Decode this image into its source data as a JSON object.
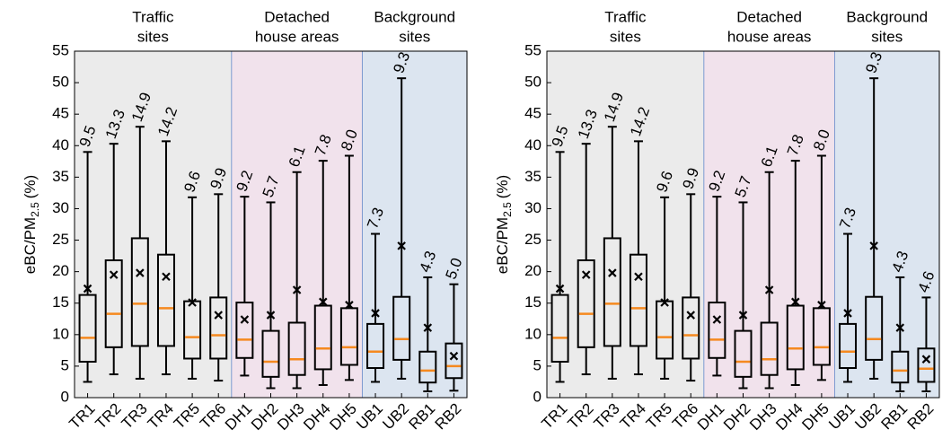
{
  "chart_data": [
    {
      "type": "box",
      "ylabel_parts": [
        "eBC/PM",
        "2.5",
        "(%)"
      ],
      "categories": [
        "TR1",
        "TR2",
        "TR3",
        "TR4",
        "TR5",
        "TR6",
        "DH1",
        "DH2",
        "DH3",
        "DH4",
        "DH5",
        "UB1",
        "UB2",
        "RB1",
        "RB2"
      ],
      "groups": [
        {
          "label_lines": [
            "Traffic",
            "sites"
          ],
          "span": 6,
          "color": "#ebebeb",
          "edge": "#9a8fc8"
        },
        {
          "label_lines": [
            "Detached",
            "house areas"
          ],
          "span": 5,
          "color": "#f1e2ec",
          "edge": "#7c9ad0"
        },
        {
          "label_lines": [
            "Background",
            "sites"
          ],
          "span": 4,
          "color": "#dce5f0",
          "edge": "#7c9ad0"
        }
      ],
      "whisker_low": [
        2.5,
        3.7,
        3,
        3.7,
        3,
        2.7,
        3.5,
        1.5,
        1.5,
        2,
        2.8,
        2.5,
        3,
        1,
        1.1
      ],
      "q1": [
        5.7,
        8,
        8.2,
        8.2,
        6.2,
        6.2,
        6.3,
        3.3,
        3.6,
        4.5,
        5.2,
        4.7,
        6,
        2.4,
        3.1
      ],
      "median": [
        9.5,
        13.3,
        14.9,
        14.2,
        9.6,
        9.9,
        9.2,
        5.7,
        6.1,
        7.8,
        8.0,
        7.3,
        9.3,
        4.3,
        5.0
      ],
      "value_labels": [
        "9.5",
        "13.3",
        "14.9",
        "14.2",
        "9.6",
        "9.9",
        "9.2",
        "5.7",
        "6.1",
        "7.8",
        "8.0",
        "7.3",
        "9.3",
        "4.3",
        "5.0"
      ],
      "q3": [
        16.3,
        21.8,
        25.3,
        22.7,
        15.3,
        15.9,
        15.1,
        10.6,
        11.9,
        14.6,
        14.2,
        11.7,
        16,
        7.3,
        8.6
      ],
      "whisker_high": [
        39,
        40.3,
        43,
        40.7,
        31.8,
        32.3,
        31.9,
        31,
        35.8,
        37.6,
        38.4,
        26,
        50.7,
        19.1,
        18
      ],
      "mean": [
        17.3,
        19.5,
        19.8,
        19.2,
        15.1,
        13.1,
        12.4,
        13.1,
        17.1,
        15.2,
        14.7,
        13.4,
        24.1,
        11.1,
        6.6
      ],
      "median_color": "#f5891f",
      "box_color": "#000000",
      "ylim": [
        0,
        55
      ],
      "yticks": [
        0,
        5,
        10,
        15,
        20,
        25,
        30,
        35,
        40,
        45,
        50,
        55
      ]
    },
    {
      "type": "box",
      "ylabel_parts": [
        "eBC/PM",
        "2.5",
        "(%)"
      ],
      "categories": [
        "TR1",
        "TR2",
        "TR3",
        "TR4",
        "TR5",
        "TR6",
        "DH1",
        "DH2",
        "DH3",
        "DH4",
        "DH5",
        "UB1",
        "UB2",
        "RB1",
        "RB2"
      ],
      "groups": [
        {
          "label_lines": [
            "Traffic",
            "sites"
          ],
          "span": 6,
          "color": "#ebebeb",
          "edge": "#9a8fc8"
        },
        {
          "label_lines": [
            "Detached",
            "house areas"
          ],
          "span": 5,
          "color": "#f1e2ec",
          "edge": "#7c9ad0"
        },
        {
          "label_lines": [
            "Background",
            "sites"
          ],
          "span": 4,
          "color": "#dce5f0",
          "edge": "#7c9ad0"
        }
      ],
      "whisker_low": [
        2.5,
        3.7,
        3,
        3.7,
        3,
        2.7,
        3.5,
        1.5,
        1.5,
        2,
        2.8,
        2.5,
        3,
        1,
        1
      ],
      "q1": [
        5.7,
        8,
        8.2,
        8.2,
        6.2,
        6.2,
        6.3,
        3.3,
        3.6,
        4.5,
        5.2,
        4.7,
        6,
        2.4,
        2.5
      ],
      "median": [
        9.5,
        13.3,
        14.9,
        14.2,
        9.6,
        9.9,
        9.2,
        5.7,
        6.1,
        7.8,
        8.0,
        7.3,
        9.3,
        4.3,
        4.6
      ],
      "value_labels": [
        "9.5",
        "13.3",
        "14.9",
        "14.2",
        "9.6",
        "9.9",
        "9.2",
        "5.7",
        "6.1",
        "7.8",
        "8.0",
        "7.3",
        "9.3",
        "4.3",
        "4.6"
      ],
      "q3": [
        16.3,
        21.8,
        25.3,
        22.7,
        15.3,
        15.9,
        15.1,
        10.6,
        11.9,
        14.6,
        14.2,
        11.7,
        16,
        7.3,
        7.8
      ],
      "whisker_high": [
        39,
        40.3,
        43,
        40.7,
        31.8,
        32.3,
        31.9,
        31,
        35.8,
        37.6,
        38.4,
        26,
        50.7,
        19.1,
        15.9
      ],
      "mean": [
        17.3,
        19.5,
        19.8,
        19.2,
        15.1,
        13.1,
        12.4,
        13.1,
        17.1,
        15.2,
        14.7,
        13.4,
        24.1,
        11.1,
        6.1
      ],
      "median_color": "#f5891f",
      "box_color": "#000000",
      "ylim": [
        0,
        55
      ],
      "yticks": [
        0,
        5,
        10,
        15,
        20,
        25,
        30,
        35,
        40,
        45,
        50,
        55
      ]
    }
  ]
}
